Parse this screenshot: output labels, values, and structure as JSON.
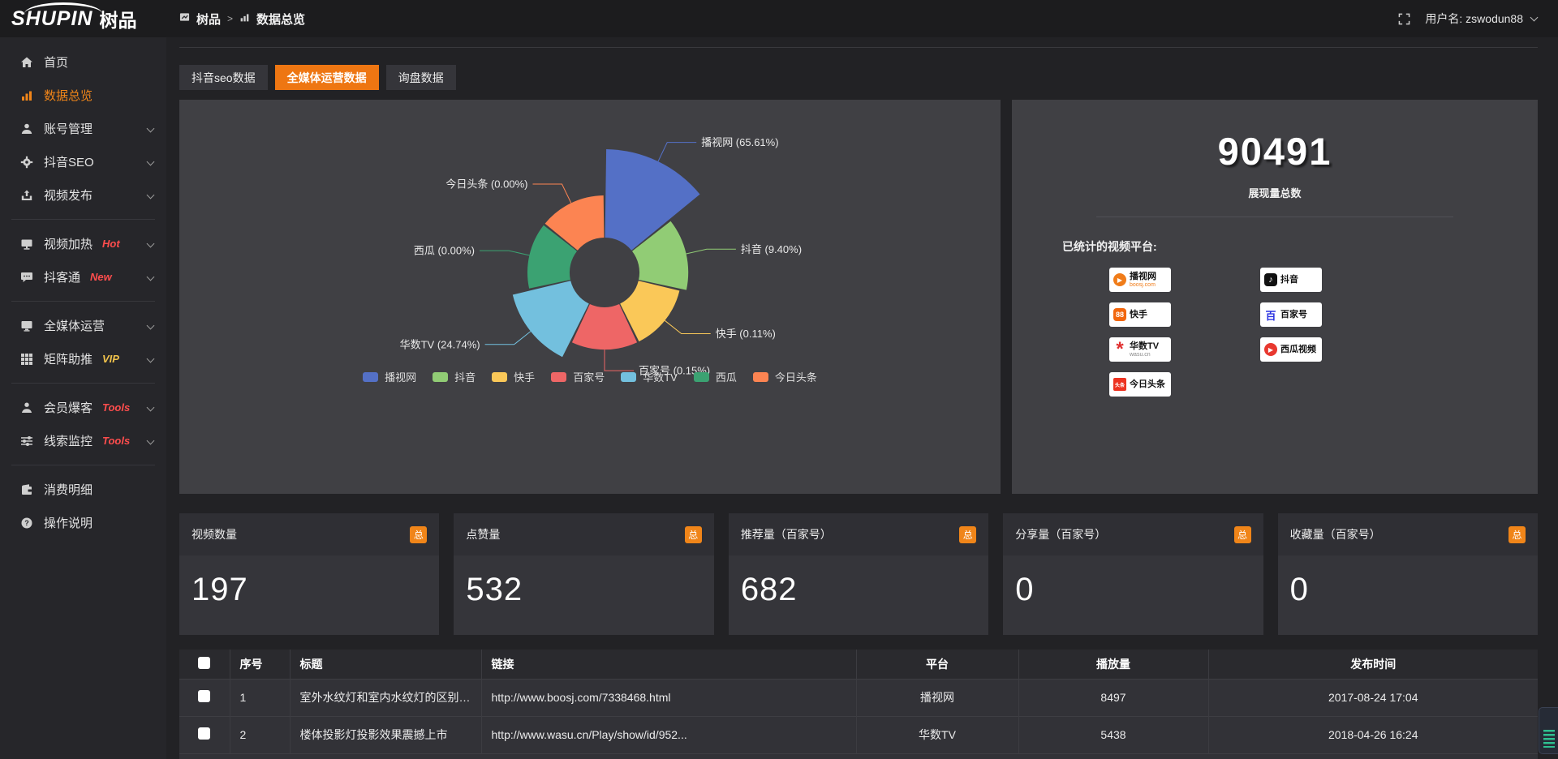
{
  "topbar": {
    "logo_en": "SHUPIN",
    "logo_cn": "树品",
    "breadcrumb_root": "树品",
    "breadcrumb_sep": ">",
    "breadcrumb_current": "数据总览",
    "username": "用户名: zswodun88"
  },
  "sidebar": {
    "items": [
      {
        "label": "首页",
        "icon": "home-icon"
      },
      {
        "label": "数据总览",
        "icon": "bar-chart-icon",
        "active": true
      },
      {
        "label": "账号管理",
        "icon": "user-icon",
        "chevron": true
      },
      {
        "label": "抖音SEO",
        "icon": "gear-icon",
        "chevron": true
      },
      {
        "label": "视频发布",
        "icon": "publish-icon",
        "chevron": true
      },
      {
        "label": "视频加热",
        "icon": "monitor-icon",
        "badge": "Hot",
        "badge_color": "#ff4d4d",
        "chevron": true
      },
      {
        "label": "抖客通",
        "icon": "chat-icon",
        "badge": "New",
        "badge_color": "#ff4d4d",
        "chevron": true
      },
      {
        "label": "全媒体运营",
        "icon": "screen-icon",
        "chevron": true
      },
      {
        "label": "矩阵助推",
        "icon": "grid-icon",
        "badge": "VIP",
        "badge_color": "#f0c24b",
        "chevron": true
      },
      {
        "label": "会员爆客",
        "icon": "member-icon",
        "badge": "Tools",
        "badge_color": "#ff4d4d",
        "chevron": true
      },
      {
        "label": "线索监控",
        "icon": "sliders-icon",
        "badge": "Tools",
        "badge_color": "#ff4d4d",
        "chevron": true
      },
      {
        "label": "消费明细",
        "icon": "wallet-icon"
      },
      {
        "label": "操作说明",
        "icon": "help-icon"
      }
    ]
  },
  "tabs": [
    {
      "label": "抖音seo数据",
      "active": false
    },
    {
      "label": "全媒体运营数据",
      "active": true
    },
    {
      "label": "询盘数据",
      "active": false
    }
  ],
  "chart_data": {
    "type": "pie",
    "subtype": "nightingale-rose-donut",
    "categories": [
      "播视网",
      "抖音",
      "快手",
      "百家号",
      "华数TV",
      "西瓜",
      "今日头条"
    ],
    "values": [
      65.61,
      9.4,
      0.11,
      0.15,
      24.74,
      0.0,
      0.0
    ],
    "unit": "%",
    "labels": [
      "播视网 (65.61%)",
      "抖音 (9.40%)",
      "快手 (0.11%)",
      "百家号 (0.15%)",
      "华数TV (24.74%)",
      "西瓜 (0.00%)",
      "今日头条 (0.00%)"
    ],
    "colors": [
      "#5470c6",
      "#91cc75",
      "#fac858",
      "#ee6666",
      "#73c0de",
      "#3ba272",
      "#fc8452"
    ],
    "legend": [
      "播视网",
      "抖音",
      "快手",
      "百家号",
      "华数TV",
      "西瓜",
      "今日头条"
    ],
    "legend_position": "bottom",
    "title": ""
  },
  "summary": {
    "total": "90491",
    "total_label": "展现量总数",
    "platforms_label": "已统计的视频平台:",
    "platforms": [
      {
        "name": "播视网",
        "sub": "boosj.com",
        "icon": "boosj-logo-icon",
        "glyph": "▶"
      },
      {
        "name": "抖音",
        "sub": "",
        "icon": "douyin-logo-icon",
        "glyph": "♪"
      },
      {
        "name": "快手",
        "sub": "",
        "icon": "kuaishou-logo-icon",
        "glyph": "88"
      },
      {
        "name": "百家号",
        "sub": "",
        "icon": "baijiahao-logo-icon",
        "glyph": "百"
      },
      {
        "name": "华数TV",
        "sub": "wasu.cn",
        "icon": "wasu-logo-icon",
        "glyph": "*"
      },
      {
        "name": "西瓜视频",
        "sub": "",
        "icon": "xigua-logo-icon",
        "glyph": "▶"
      },
      {
        "name": "今日头条",
        "sub": "",
        "icon": "toutiao-logo-icon",
        "glyph": "头条"
      }
    ]
  },
  "stat_cards": [
    {
      "title": "视频数量",
      "badge": "总",
      "value": "197"
    },
    {
      "title": "点赞量",
      "badge": "总",
      "value": "532"
    },
    {
      "title": "推荐量（百家号）",
      "badge": "总",
      "value": "682"
    },
    {
      "title": "分享量（百家号）",
      "badge": "总",
      "value": "0"
    },
    {
      "title": "收藏量（百家号）",
      "badge": "总",
      "value": "0"
    }
  ],
  "table": {
    "headers": [
      "序号",
      "标题",
      "链接",
      "平台",
      "播放量",
      "发布时间"
    ],
    "rows": [
      {
        "index": "1",
        "title": "室外水纹灯和室内水纹灯的区别和简介",
        "link": "http://www.boosj.com/7338468.html",
        "platform": "播视网",
        "plays": "8497",
        "time": "2017-08-24 17:04"
      },
      {
        "index": "2",
        "title": "楼体投影灯投影效果震撼上市",
        "link": "http://www.wasu.cn/Play/show/id/952...",
        "platform": "华数TV",
        "plays": "5438",
        "time": "2018-04-26 16:24"
      }
    ]
  },
  "colors": {
    "accent_orange": "#ee7612",
    "badge_orange": "#f08519",
    "link_orange": "#f0953f",
    "hot_red": "#ff4d4d",
    "vip_yellow": "#f0c24b",
    "panel_bg": "#404044",
    "page_bg": "#222225",
    "sidebar_bg": "#26262a",
    "topbar_bg": "#1c1c1e"
  }
}
